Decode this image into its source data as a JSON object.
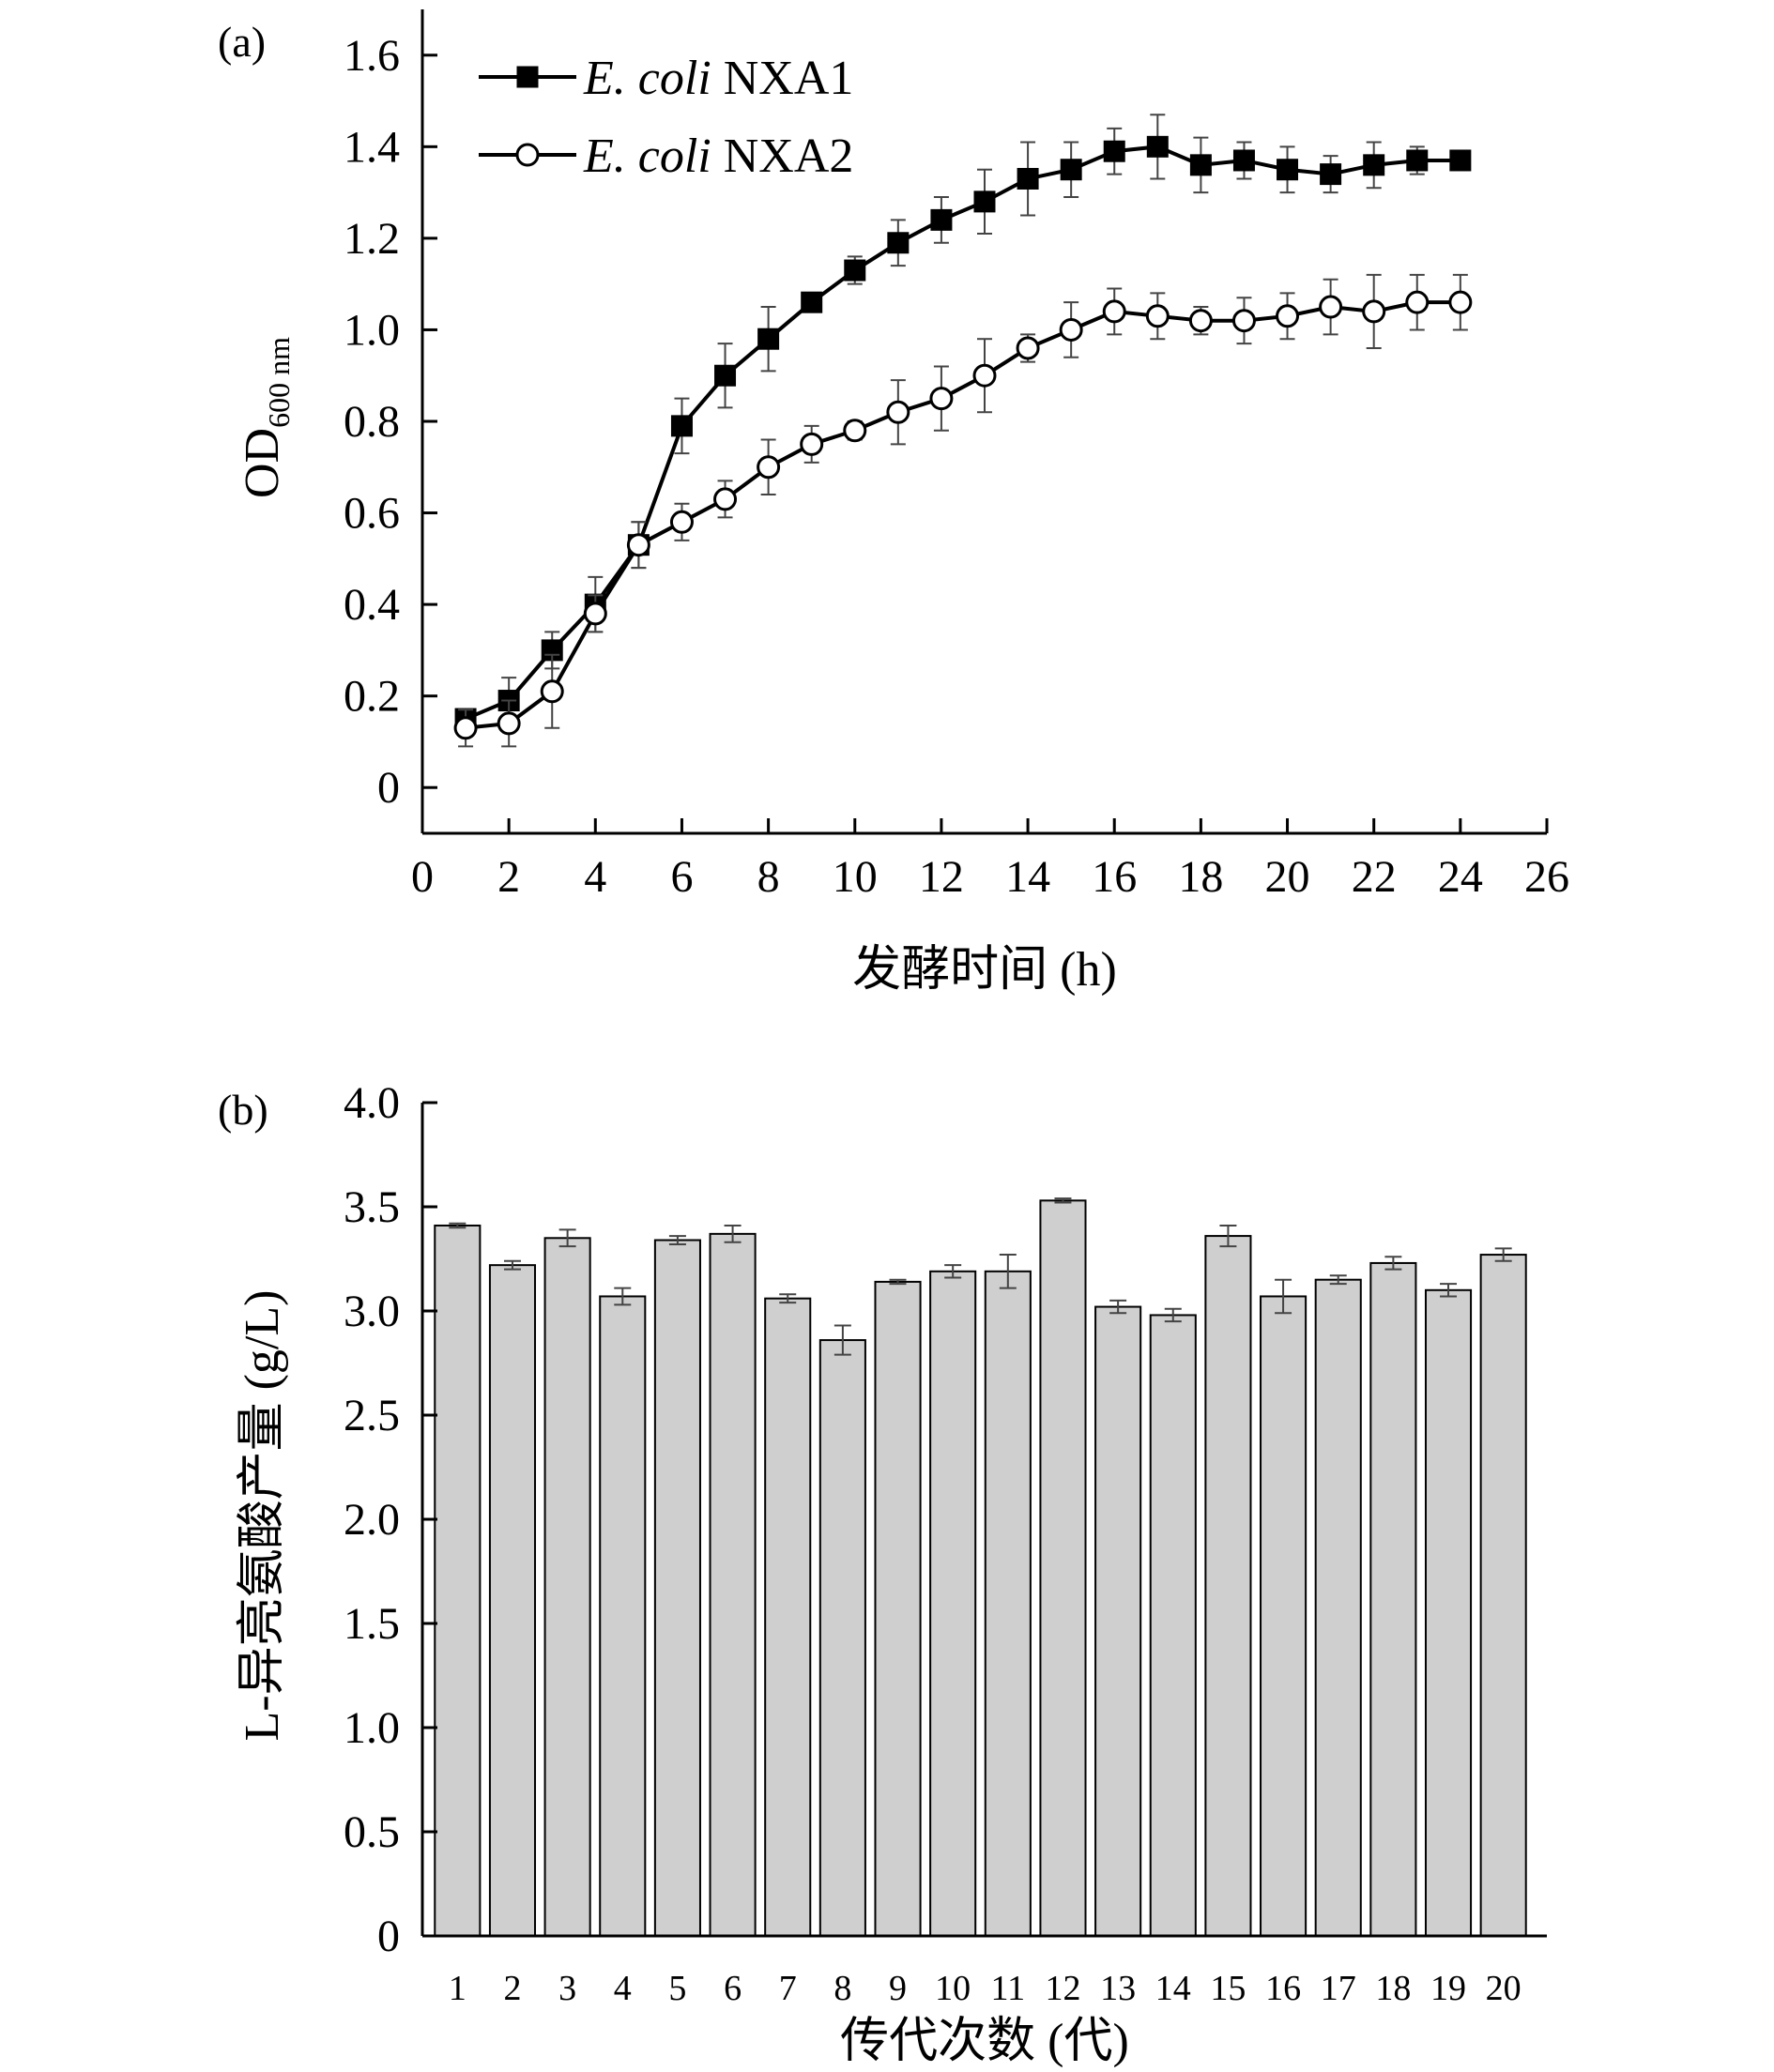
{
  "colors": {
    "ink": "#000000",
    "bar_fill": "#cfcfcf",
    "background": "#ffffff"
  },
  "chart_data": [
    {
      "id": "a",
      "panel_label": "(a)",
      "type": "line",
      "xlabel": "发酵时间 (h)",
      "ylabel_main": "OD",
      "ylabel_sub": "600 nm",
      "xlim": [
        0,
        26
      ],
      "ylim": [
        -0.1,
        1.7
      ],
      "xticks": [
        0,
        2,
        4,
        6,
        8,
        10,
        12,
        14,
        16,
        18,
        20,
        22,
        24,
        26
      ],
      "yticks": [
        0,
        0.2,
        0.4,
        0.6,
        0.8,
        1.0,
        1.2,
        1.4,
        1.6
      ],
      "ytick_labels": [
        "0",
        "0.2",
        "0.4",
        "0.6",
        "0.8",
        "1.0",
        "1.2",
        "1.4",
        "1.6"
      ],
      "x": [
        1,
        2,
        3,
        4,
        5,
        6,
        7,
        8,
        9,
        10,
        11,
        12,
        13,
        14,
        15,
        16,
        17,
        18,
        19,
        20,
        21,
        22,
        23,
        24
      ],
      "legend_position": "top-left",
      "series": [
        {
          "name_italic": "E. coli",
          "name_rest": " NXA1",
          "marker": "filled-square",
          "values": [
            0.15,
            0.19,
            0.3,
            0.4,
            0.53,
            0.79,
            0.9,
            0.98,
            1.06,
            1.13,
            1.19,
            1.24,
            1.28,
            1.33,
            1.35,
            1.39,
            1.4,
            1.36,
            1.37,
            1.35,
            1.34,
            1.36,
            1.37,
            1.37
          ],
          "errors": [
            0.02,
            0.05,
            0.04,
            0.06,
            0.05,
            0.06,
            0.07,
            0.07,
            0.02,
            0.03,
            0.05,
            0.05,
            0.07,
            0.08,
            0.06,
            0.05,
            0.07,
            0.06,
            0.04,
            0.05,
            0.04,
            0.05,
            0.03,
            0.02
          ]
        },
        {
          "name_italic": "E. coli",
          "name_rest": " NXA2",
          "marker": "open-circle",
          "values": [
            0.13,
            0.14,
            0.21,
            0.38,
            0.53,
            0.58,
            0.63,
            0.7,
            0.75,
            0.78,
            0.82,
            0.85,
            0.9,
            0.96,
            1.0,
            1.04,
            1.03,
            1.02,
            1.02,
            1.03,
            1.05,
            1.04,
            1.06,
            1.06
          ],
          "errors": [
            0.04,
            0.05,
            0.08,
            0.04,
            0.05,
            0.04,
            0.04,
            0.06,
            0.04,
            0.02,
            0.07,
            0.07,
            0.08,
            0.03,
            0.06,
            0.05,
            0.05,
            0.03,
            0.05,
            0.05,
            0.06,
            0.08,
            0.06,
            0.06
          ]
        }
      ]
    },
    {
      "id": "b",
      "panel_label": "(b)",
      "type": "bar",
      "xlabel": "传代次数 (代)",
      "ylabel": "L-异亮氨酸产量 (g/L)",
      "ylim": [
        0,
        4.0
      ],
      "yticks": [
        0,
        0.5,
        1.0,
        1.5,
        2.0,
        2.5,
        3.0,
        3.5,
        4.0
      ],
      "ytick_labels": [
        "0",
        "0.5",
        "1.0",
        "1.5",
        "2.0",
        "2.5",
        "3.0",
        "3.5",
        "4.0"
      ],
      "categories": [
        "1",
        "2",
        "3",
        "4",
        "5",
        "6",
        "7",
        "8",
        "9",
        "10",
        "11",
        "12",
        "13",
        "14",
        "15",
        "16",
        "17",
        "18",
        "19",
        "20"
      ],
      "values": [
        3.41,
        3.22,
        3.35,
        3.07,
        3.34,
        3.37,
        3.06,
        2.86,
        3.14,
        3.19,
        3.19,
        3.53,
        3.02,
        2.98,
        3.36,
        3.07,
        3.15,
        3.23,
        3.1,
        3.27
      ],
      "errors": [
        0.01,
        0.02,
        0.04,
        0.04,
        0.02,
        0.04,
        0.02,
        0.07,
        0.01,
        0.03,
        0.08,
        0.01,
        0.03,
        0.03,
        0.05,
        0.08,
        0.02,
        0.03,
        0.03,
        0.03
      ]
    }
  ]
}
